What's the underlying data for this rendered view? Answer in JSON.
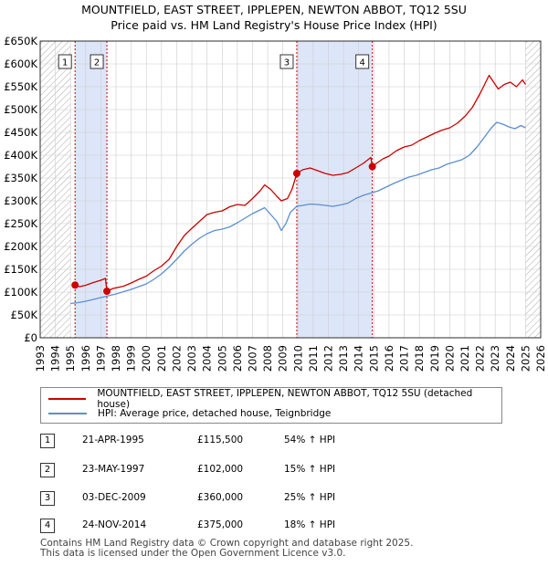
{
  "title": {
    "line1": "MOUNTFIELD, EAST STREET, IPPLEPEN, NEWTON ABBOT, TQ12 5SU",
    "line2": "Price paid vs. HM Land Registry's House Price Index (HPI)"
  },
  "colors": {
    "price_line": "#cc0000",
    "hpi_line": "#5b8fd0",
    "shade": "#dde6f8",
    "marker_line": "#cc0000",
    "grid": "#cccccc"
  },
  "legend": [
    {
      "label": "MOUNTFIELD, EAST STREET, IPPLEPEN, NEWTON ABBOT, TQ12 5SU (detached house)",
      "color": "#cc0000"
    },
    {
      "label": "HPI: Average price, detached house, Teignbridge",
      "color": "#5b8fd0"
    }
  ],
  "sales": [
    {
      "num": "1",
      "date": "21-APR-1995",
      "price": "£115,500",
      "hpi": "54% ↑ HPI"
    },
    {
      "num": "2",
      "date": "23-MAY-1997",
      "price": "£102,000",
      "hpi": "15% ↑ HPI"
    },
    {
      "num": "3",
      "date": "03-DEC-2009",
      "price": "£360,000",
      "hpi": "25% ↑ HPI"
    },
    {
      "num": "4",
      "date": "24-NOV-2014",
      "price": "£375,000",
      "hpi": "18% ↑ HPI"
    }
  ],
  "footer": {
    "line1": "Contains HM Land Registry data © Crown copyright and database right 2025.",
    "line2": "This data is licensed under the Open Government Licence v3.0."
  },
  "chart_data": {
    "type": "line",
    "title": "Price paid vs. HM Land Registry's House Price Index (HPI)",
    "xlim": [
      1993,
      2026
    ],
    "ylim": [
      0,
      650000
    ],
    "x_ticks": [
      "1993",
      "1994",
      "1995",
      "1996",
      "1997",
      "1998",
      "1999",
      "2000",
      "2001",
      "2002",
      "2003",
      "2004",
      "2005",
      "2006",
      "2007",
      "2008",
      "2009",
      "2010",
      "2011",
      "2012",
      "2013",
      "2014",
      "2015",
      "2016",
      "2017",
      "2018",
      "2019",
      "2020",
      "2021",
      "2022",
      "2023",
      "2024",
      "2025",
      "2026"
    ],
    "y_ticks": [
      {
        "value": 0,
        "label": "£0"
      },
      {
        "value": 50000,
        "label": "£50K"
      },
      {
        "value": 100000,
        "label": "£100K"
      },
      {
        "value": 150000,
        "label": "£150K"
      },
      {
        "value": 200000,
        "label": "£200K"
      },
      {
        "value": 250000,
        "label": "£250K"
      },
      {
        "value": 300000,
        "label": "£300K"
      },
      {
        "value": 350000,
        "label": "£350K"
      },
      {
        "value": 400000,
        "label": "£400K"
      },
      {
        "value": 450000,
        "label": "£450K"
      },
      {
        "value": 500000,
        "label": "£500K"
      },
      {
        "value": 550000,
        "label": "£550K"
      },
      {
        "value": 600000,
        "label": "£600K"
      },
      {
        "value": 650000,
        "label": "£650K"
      }
    ],
    "shaded_ranges": [
      [
        1995.3,
        1997.4
      ],
      [
        2009.9,
        2014.9
      ]
    ],
    "hatched_ranges": [
      [
        1993,
        1995.0
      ],
      [
        2025.0,
        2026
      ]
    ],
    "sale_markers": [
      {
        "label": "1",
        "x": 1995.3,
        "y": 115500
      },
      {
        "label": "2",
        "x": 1997.4,
        "y": 102000
      },
      {
        "label": "3",
        "x": 2009.92,
        "y": 360000
      },
      {
        "label": "4",
        "x": 2014.9,
        "y": 375000
      }
    ],
    "series": [
      {
        "name": "MOUNTFIELD, EAST STREET, IPPLEPEN, NEWTON ABBOT, TQ12 5SU (detached house)",
        "x": [
          1995.3,
          1995.6,
          1996.0,
          1996.5,
          1997.0,
          1997.3,
          1997.4,
          1997.8,
          1998.5,
          1999.0,
          1999.5,
          2000.0,
          2000.5,
          2001.0,
          2001.5,
          2002.0,
          2002.5,
          2003.0,
          2003.5,
          2004.0,
          2004.5,
          2005.0,
          2005.5,
          2006.0,
          2006.5,
          2007.0,
          2007.5,
          2007.8,
          2008.2,
          2008.6,
          2008.9,
          2009.3,
          2009.6,
          2009.92,
          2010.3,
          2010.8,
          2011.3,
          2011.8,
          2012.3,
          2012.8,
          2013.3,
          2013.8,
          2014.3,
          2014.8,
          2014.9,
          2015.2,
          2015.6,
          2016.0,
          2016.5,
          2017.0,
          2017.5,
          2018.0,
          2018.5,
          2019.0,
          2019.5,
          2020.0,
          2020.5,
          2021.0,
          2021.5,
          2022.0,
          2022.3,
          2022.6,
          2022.9,
          2023.2,
          2023.6,
          2024.0,
          2024.4,
          2024.8,
          2025.0
        ],
        "values": [
          115500,
          112000,
          115000,
          121000,
          126000,
          130000,
          102000,
          108000,
          113000,
          120000,
          128000,
          135000,
          147000,
          157000,
          172000,
          200000,
          224000,
          240000,
          255000,
          270000,
          275000,
          278000,
          287000,
          292000,
          290000,
          305000,
          322000,
          335000,
          325000,
          310000,
          300000,
          305000,
          325000,
          360000,
          368000,
          372000,
          366000,
          360000,
          356000,
          358000,
          362000,
          372000,
          382000,
          395000,
          375000,
          383000,
          392000,
          398000,
          410000,
          418000,
          422000,
          432000,
          440000,
          448000,
          455000,
          460000,
          470000,
          485000,
          505000,
          535000,
          555000,
          575000,
          560000,
          545000,
          555000,
          560000,
          550000,
          565000,
          555000
        ]
      },
      {
        "name": "HPI: Average price, detached house, Teignbridge",
        "x": [
          1995.0,
          1995.5,
          1996.0,
          1996.5,
          1997.0,
          1997.5,
          1998.0,
          1998.5,
          1999.0,
          1999.5,
          2000.0,
          2000.5,
          2001.0,
          2001.5,
          2002.0,
          2002.5,
          2003.0,
          2003.5,
          2004.0,
          2004.5,
          2005.0,
          2005.5,
          2006.0,
          2006.5,
          2007.0,
          2007.5,
          2007.8,
          2008.2,
          2008.6,
          2008.9,
          2009.2,
          2009.5,
          2009.92,
          2010.3,
          2010.8,
          2011.3,
          2011.8,
          2012.3,
          2012.8,
          2013.3,
          2013.8,
          2014.3,
          2014.9,
          2015.3,
          2015.8,
          2016.3,
          2016.8,
          2017.3,
          2017.8,
          2018.3,
          2018.8,
          2019.3,
          2019.8,
          2020.3,
          2020.8,
          2021.3,
          2021.8,
          2022.3,
          2022.7,
          2023.1,
          2023.5,
          2023.9,
          2024.3,
          2024.7,
          2025.0
        ],
        "values": [
          75000,
          77000,
          80000,
          84000,
          88000,
          92000,
          96000,
          101000,
          106000,
          112000,
          118000,
          128000,
          140000,
          155000,
          172000,
          190000,
          205000,
          218000,
          228000,
          235000,
          238000,
          243000,
          252000,
          262000,
          272000,
          280000,
          285000,
          270000,
          255000,
          235000,
          250000,
          275000,
          288000,
          290000,
          293000,
          292000,
          290000,
          288000,
          291000,
          295000,
          305000,
          312000,
          318000,
          322000,
          330000,
          338000,
          345000,
          352000,
          356000,
          362000,
          368000,
          372000,
          380000,
          385000,
          390000,
          400000,
          418000,
          440000,
          458000,
          472000,
          468000,
          462000,
          458000,
          465000,
          460000
        ]
      }
    ]
  }
}
